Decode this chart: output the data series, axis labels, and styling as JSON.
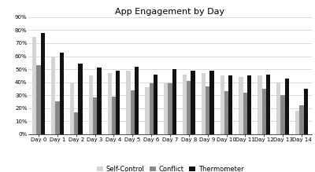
{
  "title": "App Engagement by Day",
  "categories": [
    "Day 0",
    "Day 1",
    "Day 2",
    "Day 3",
    "Day 4",
    "Day 5",
    "Day 6",
    "Day 7",
    "Day 8",
    "Day 9",
    "Day 10",
    "Day 11",
    "Day 12",
    "Day 13",
    "Day 14"
  ],
  "series": {
    "Self-Control": [
      0.75,
      0.6,
      0.39,
      0.45,
      0.47,
      0.49,
      0.36,
      0.39,
      0.46,
      0.47,
      0.45,
      0.44,
      0.45,
      0.4,
      0.18
    ],
    "Conflict": [
      0.53,
      0.25,
      0.17,
      0.28,
      0.29,
      0.34,
      0.39,
      0.39,
      0.41,
      0.37,
      0.33,
      0.32,
      0.35,
      0.3,
      0.22
    ],
    "Thermometer": [
      0.78,
      0.63,
      0.54,
      0.51,
      0.49,
      0.52,
      0.46,
      0.5,
      0.49,
      0.49,
      0.45,
      0.45,
      0.46,
      0.43,
      0.35
    ]
  },
  "colors": {
    "Self-Control": "#d4d4d4",
    "Conflict": "#888888",
    "Thermometer": "#111111"
  },
  "ylim": [
    0,
    0.9
  ],
  "yticks": [
    0.0,
    0.1,
    0.2,
    0.3,
    0.4,
    0.5,
    0.6,
    0.7,
    0.8,
    0.9
  ],
  "ytick_labels": [
    "0%",
    "10%",
    "20%",
    "30%",
    "40%",
    "50%",
    "60%",
    "70%",
    "80%",
    "90%"
  ],
  "background_color": "#ffffff",
  "grid_color": "#cccccc",
  "title_fontsize": 8,
  "tick_fontsize": 5.0,
  "legend_fontsize": 6.0,
  "bar_width": 0.22
}
